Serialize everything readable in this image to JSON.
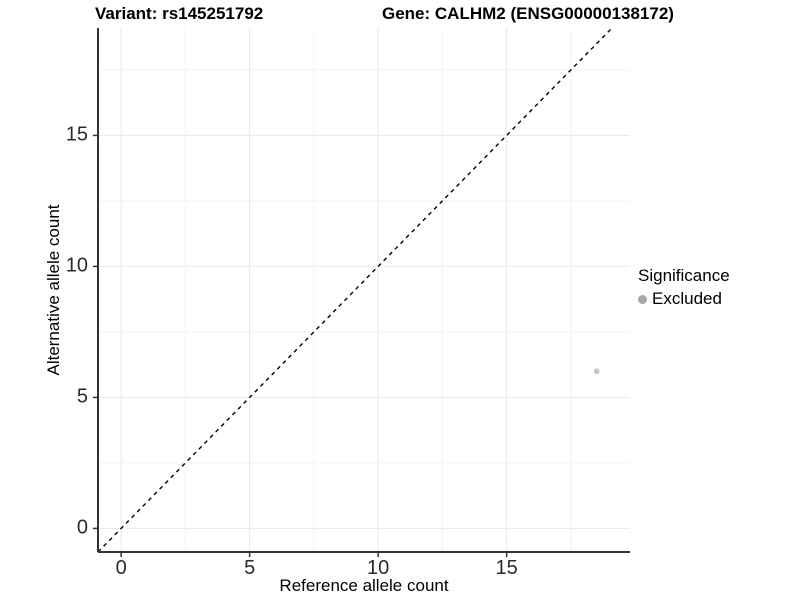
{
  "header": {
    "variant_title": "Variant: rs145251792",
    "gene_title": "Gene: CALHM2 (ENSG00000138172)"
  },
  "chart_data": {
    "type": "scatter",
    "title_left": "Variant: rs145251792",
    "title_right": "Gene: CALHM2 (ENSG00000138172)",
    "xlabel": "Reference allele count",
    "ylabel": "Alternative allele count",
    "xlim": [
      -0.9,
      19.8
    ],
    "ylim": [
      -0.9,
      19.1
    ],
    "x_ticks": [
      0,
      5,
      10,
      15
    ],
    "y_ticks": [
      0,
      5,
      10,
      15
    ],
    "x_minor_ticks": [
      2.5,
      7.5,
      12.5,
      17.5
    ],
    "y_minor_ticks": [
      2.5,
      7.5,
      12.5,
      17.5
    ],
    "grid": "major+minor",
    "reference_line": {
      "type": "identity y=x",
      "style": "dashed",
      "color": "#000000"
    },
    "series": [
      {
        "name": "Excluded",
        "point_color": "#c5c5c5",
        "points": [
          {
            "x": 18.5,
            "y": 6
          }
        ]
      }
    ],
    "legend": {
      "title": "Significance",
      "position": "right",
      "items": [
        {
          "label": "Excluded",
          "color": "#a6a6a6"
        }
      ]
    }
  },
  "colors": {
    "background": "#ffffff",
    "axis_line": "#333333",
    "grid_major": "#e8e8e8",
    "grid_minor": "#f3f3f3",
    "tick_text": "#2b2b2b",
    "point": "#c5c5c5",
    "legend_key": "#a6a6a6",
    "dashed_line": "#000000"
  }
}
